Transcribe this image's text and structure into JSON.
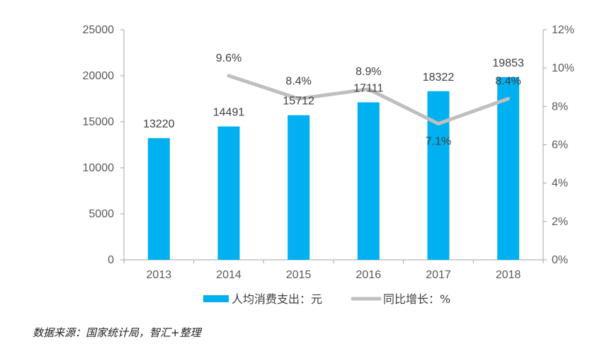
{
  "chart_data": {
    "type": "bar",
    "categories": [
      "2013",
      "2014",
      "2015",
      "2016",
      "2017",
      "2018"
    ],
    "series": [
      {
        "name": "人均消费支出：元",
        "type": "bar",
        "axis": "left",
        "values": [
          13220,
          14491,
          15712,
          17111,
          18322,
          19853
        ],
        "labels": [
          "13220",
          "14491",
          "15712",
          "17111",
          "18322",
          "19853"
        ]
      },
      {
        "name": "同比增长：%",
        "type": "line",
        "axis": "right",
        "values": [
          null,
          9.6,
          8.4,
          8.9,
          7.1,
          8.4
        ],
        "labels": [
          "",
          "9.6%",
          "8.4%",
          "8.9%",
          "7.1%",
          "8.4%"
        ]
      }
    ],
    "y_left": {
      "min": 0,
      "max": 25000,
      "ticks": [
        "0",
        "5000",
        "10000",
        "15000",
        "20000",
        "25000"
      ]
    },
    "y_right": {
      "min": 0,
      "max": 12,
      "ticks": [
        "0%",
        "2%",
        "4%",
        "6%",
        "8%",
        "10%",
        "12%"
      ]
    },
    "grid": false,
    "legend": "bottom"
  },
  "colors": {
    "bar": "#00B0F0",
    "line": "#BFBFBF",
    "axis": "#A6A6A6"
  },
  "source_note": "数据来源：国家统计局，智汇+整理"
}
